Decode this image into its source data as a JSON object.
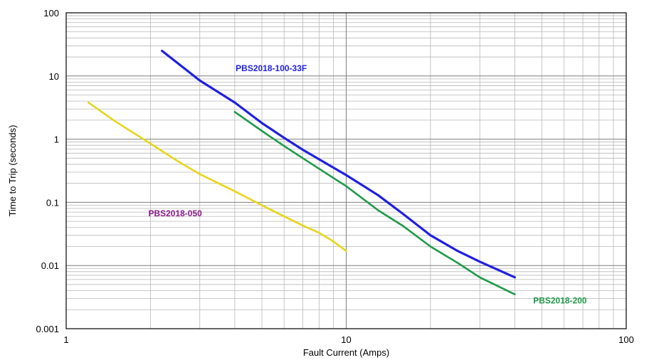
{
  "chart_data": {
    "type": "line",
    "xlabel": "Fault Current (Amps)",
    "ylabel": "Time to Trip (seconds)",
    "xscale": "log",
    "yscale": "log",
    "xlim": [
      1,
      100
    ],
    "ylim": [
      0.001,
      100
    ],
    "grid": true,
    "x_ticks": [
      {
        "value": 1,
        "label": "1"
      },
      {
        "value": 10,
        "label": "10"
      },
      {
        "value": 100,
        "label": "100"
      }
    ],
    "y_ticks": [
      {
        "value": 100,
        "label": "100"
      },
      {
        "value": 10,
        "label": "10"
      },
      {
        "value": 1,
        "label": "1"
      },
      {
        "value": 0.1,
        "label": "0.1"
      },
      {
        "value": 0.01,
        "label": "0.01"
      },
      {
        "value": 0.001,
        "label": "0.001"
      }
    ],
    "series": [
      {
        "name": "PBS2018-100-33F",
        "color": "#1f1fe0",
        "x": [
          2.2,
          3,
          4,
          5,
          6,
          7,
          8,
          10,
          13,
          16,
          20,
          25,
          30,
          40
        ],
        "y": [
          25,
          8.5,
          3.8,
          1.8,
          1.05,
          0.68,
          0.48,
          0.27,
          0.13,
          0.065,
          0.03,
          0.017,
          0.0115,
          0.0065
        ]
      },
      {
        "name": "PBS2018-200",
        "color": "#1f9a4a",
        "x": [
          4,
          5,
          6,
          7,
          8,
          10,
          13,
          16,
          20,
          25,
          30,
          40
        ],
        "y": [
          2.7,
          1.35,
          0.78,
          0.5,
          0.34,
          0.18,
          0.075,
          0.042,
          0.02,
          0.011,
          0.0065,
          0.0035
        ]
      },
      {
        "name": "PBS2018-050",
        "color": "#e6d619",
        "x": [
          1.2,
          1.5,
          2,
          2.5,
          3,
          4,
          5,
          6,
          7,
          8,
          9,
          10
        ],
        "y": [
          3.8,
          1.9,
          0.85,
          0.45,
          0.28,
          0.15,
          0.09,
          0.06,
          0.043,
          0.033,
          0.024,
          0.017
        ]
      }
    ],
    "labels": [
      {
        "text": "PBS2018-100-33F",
        "color": "#1f1fe0",
        "x": 5.4,
        "y": 12
      },
      {
        "text": "PBS2018-200",
        "color": "#1f9a4a",
        "x": 58,
        "y": 0.0025
      },
      {
        "text": "PBS2018-050",
        "color": "#8b1a8b",
        "x": 2.45,
        "y": 0.06
      }
    ]
  }
}
